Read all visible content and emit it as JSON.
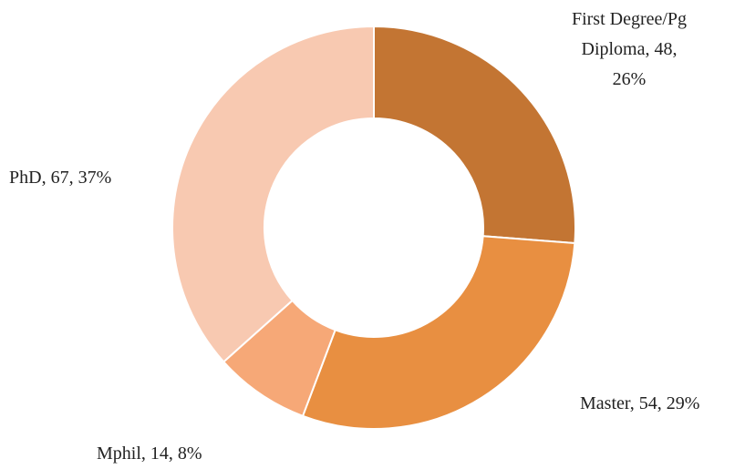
{
  "chart_data": {
    "type": "pie",
    "values": [
      48,
      54,
      14,
      67
    ],
    "value_labels": [
      "First Degree/Pg Diploma, 48, 26%",
      "Master, 54, 29%",
      "Mphil, 14, 8%",
      "PhD, 67, 37%"
    ],
    "colors": [
      "#c37533",
      "#e88f41",
      "#f6a877",
      "#f8c9b1"
    ],
    "donut": true
  }
}
